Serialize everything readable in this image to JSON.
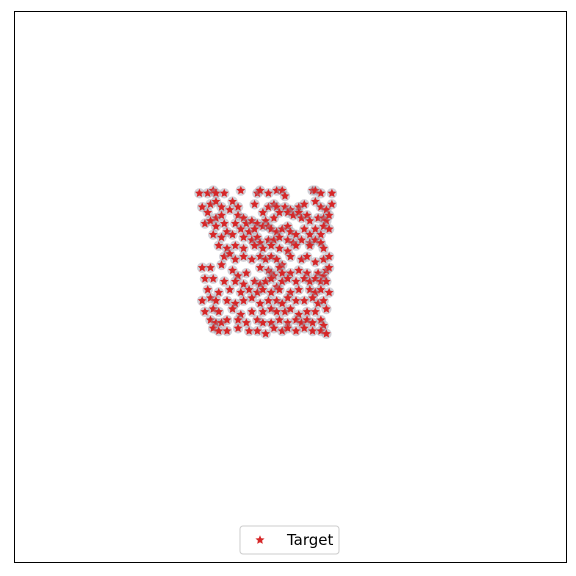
{
  "chart_data": {
    "type": "scatter",
    "title": "",
    "xlabel": "",
    "ylabel": "",
    "grid": false,
    "xlim": [
      -1,
      1
    ],
    "ylim": [
      -1,
      1
    ],
    "ticks_visible": false,
    "legend": {
      "position": "lower-center"
    },
    "series": [
      {
        "name": "Target",
        "marker": "star",
        "color": "#d62728",
        "halo_color": "#9a9aa8",
        "points": [
          [
            -0.33,
            0.34
          ],
          [
            -0.3,
            0.34
          ],
          [
            -0.28,
            0.35
          ],
          [
            -0.27,
            0.34
          ],
          [
            -0.24,
            0.34
          ],
          [
            -0.18,
            0.35
          ],
          [
            -0.12,
            0.34
          ],
          [
            -0.11,
            0.35
          ],
          [
            -0.08,
            0.34
          ],
          [
            -0.05,
            0.35
          ],
          [
            -0.03,
            0.35
          ],
          [
            -0.02,
            0.33
          ],
          [
            0.08,
            0.35
          ],
          [
            0.09,
            0.35
          ],
          [
            0.11,
            0.34
          ],
          [
            0.15,
            0.34
          ],
          [
            -0.32,
            0.29
          ],
          [
            -0.29,
            0.3
          ],
          [
            -0.27,
            0.31
          ],
          [
            -0.25,
            0.29
          ],
          [
            -0.21,
            0.31
          ],
          [
            -0.19,
            0.29
          ],
          [
            -0.13,
            0.3
          ],
          [
            -0.1,
            0.27
          ],
          [
            -0.08,
            0.29
          ],
          [
            -0.06,
            0.3
          ],
          [
            -0.05,
            0.29
          ],
          [
            -0.02,
            0.29
          ],
          [
            0.0,
            0.28
          ],
          [
            0.03,
            0.29
          ],
          [
            0.05,
            0.3
          ],
          [
            0.09,
            0.31
          ],
          [
            0.11,
            0.29
          ],
          [
            0.13,
            0.28
          ],
          [
            0.15,
            0.3
          ],
          [
            -0.3,
            0.27
          ],
          [
            -0.27,
            0.25
          ],
          [
            -0.25,
            0.26
          ],
          [
            -0.22,
            0.28
          ],
          [
            -0.19,
            0.26
          ],
          [
            -0.17,
            0.25
          ],
          [
            -0.16,
            0.23
          ],
          [
            -0.14,
            0.24
          ],
          [
            -0.12,
            0.23
          ],
          [
            -0.09,
            0.24
          ],
          [
            -0.06,
            0.25
          ],
          [
            -0.04,
            0.27
          ],
          [
            -0.01,
            0.27
          ],
          [
            0.01,
            0.26
          ],
          [
            0.03,
            0.27
          ],
          [
            0.04,
            0.25
          ],
          [
            0.06,
            0.26
          ],
          [
            0.07,
            0.24
          ],
          [
            0.1,
            0.25
          ],
          [
            0.12,
            0.25
          ],
          [
            0.13,
            0.24
          ],
          [
            0.14,
            0.26
          ],
          [
            -0.31,
            0.23
          ],
          [
            -0.29,
            0.24
          ],
          [
            -0.27,
            0.22
          ],
          [
            -0.24,
            0.23
          ],
          [
            -0.2,
            0.23
          ],
          [
            -0.18,
            0.21
          ],
          [
            -0.15,
            0.2
          ],
          [
            -0.13,
            0.21
          ],
          [
            -0.1,
            0.22
          ],
          [
            -0.08,
            0.22
          ],
          [
            -0.07,
            0.21
          ],
          [
            -0.05,
            0.2
          ],
          [
            -0.03,
            0.21
          ],
          [
            -0.01,
            0.22
          ],
          [
            0.0,
            0.2
          ],
          [
            0.02,
            0.19
          ],
          [
            0.05,
            0.21
          ],
          [
            0.07,
            0.19
          ],
          [
            0.09,
            0.21
          ],
          [
            0.11,
            0.19
          ],
          [
            0.12,
            0.22
          ],
          [
            0.14,
            0.21
          ],
          [
            -0.28,
            0.19
          ],
          [
            -0.25,
            0.18
          ],
          [
            -0.23,
            0.2
          ],
          [
            -0.21,
            0.19
          ],
          [
            -0.17,
            0.18
          ],
          [
            -0.14,
            0.17
          ],
          [
            -0.12,
            0.18
          ],
          [
            -0.11,
            0.16
          ],
          [
            -0.08,
            0.17
          ],
          [
            -0.06,
            0.17
          ],
          [
            -0.04,
            0.18
          ],
          [
            -0.01,
            0.17
          ],
          [
            0.01,
            0.16
          ],
          [
            0.04,
            0.17
          ],
          [
            0.07,
            0.16
          ],
          [
            0.09,
            0.17
          ],
          [
            0.11,
            0.16
          ],
          [
            -0.26,
            0.15
          ],
          [
            -0.23,
            0.14
          ],
          [
            -0.2,
            0.15
          ],
          [
            -0.17,
            0.14
          ],
          [
            -0.13,
            0.15
          ],
          [
            -0.1,
            0.14
          ],
          [
            -0.07,
            0.15
          ],
          [
            -0.04,
            0.14
          ],
          [
            -0.01,
            0.13
          ],
          [
            0.02,
            0.15
          ],
          [
            0.07,
            0.15
          ],
          [
            0.12,
            0.14
          ],
          [
            -0.24,
            0.11
          ],
          [
            -0.22,
            0.12
          ],
          [
            -0.2,
            0.1
          ],
          [
            -0.17,
            0.11
          ],
          [
            -0.14,
            0.1
          ],
          [
            -0.11,
            0.11
          ],
          [
            -0.09,
            0.1
          ],
          [
            -0.07,
            0.11
          ],
          [
            -0.05,
            0.1
          ],
          [
            -0.03,
            0.08
          ],
          [
            0.0,
            0.11
          ],
          [
            0.04,
            0.1
          ],
          [
            0.06,
            0.11
          ],
          [
            0.09,
            0.09
          ],
          [
            0.12,
            0.1
          ],
          [
            0.14,
            0.11
          ],
          [
            -0.32,
            0.07
          ],
          [
            -0.29,
            0.07
          ],
          [
            -0.25,
            0.08
          ],
          [
            -0.21,
            0.06
          ],
          [
            -0.19,
            0.04
          ],
          [
            -0.16,
            0.05
          ],
          [
            -0.11,
            0.07
          ],
          [
            -0.08,
            0.06
          ],
          [
            -0.07,
            0.05
          ],
          [
            -0.06,
            0.04
          ],
          [
            -0.04,
            0.07
          ],
          [
            -0.03,
            0.05
          ],
          [
            0.0,
            0.05
          ],
          [
            0.03,
            0.06
          ],
          [
            0.06,
            0.05
          ],
          [
            0.1,
            0.05
          ],
          [
            0.12,
            0.04
          ],
          [
            0.13,
            0.06
          ],
          [
            0.14,
            0.07
          ],
          [
            -0.31,
            0.03
          ],
          [
            -0.28,
            0.03
          ],
          [
            -0.24,
            0.02
          ],
          [
            -0.2,
            0.02
          ],
          [
            -0.17,
            0.01
          ],
          [
            -0.13,
            0.02
          ],
          [
            -0.11,
            0.01
          ],
          [
            -0.09,
            0.02
          ],
          [
            -0.07,
            0.03
          ],
          [
            -0.05,
            0.0
          ],
          [
            -0.03,
            0.02
          ],
          [
            -0.01,
            0.03
          ],
          [
            0.02,
            0.02
          ],
          [
            0.05,
            0.03
          ],
          [
            0.07,
            0.02
          ],
          [
            0.09,
            0.03
          ],
          [
            0.11,
            0.02
          ],
          [
            0.13,
            0.02
          ],
          [
            -0.3,
            -0.01
          ],
          [
            -0.26,
            -0.02
          ],
          [
            -0.22,
            -0.01
          ],
          [
            -0.18,
            -0.02
          ],
          [
            -0.15,
            -0.01
          ],
          [
            -0.12,
            -0.02
          ],
          [
            -0.1,
            -0.01
          ],
          [
            -0.07,
            -0.02
          ],
          [
            -0.04,
            -0.01
          ],
          [
            0.0,
            -0.02
          ],
          [
            0.03,
            -0.01
          ],
          [
            0.07,
            -0.01
          ],
          [
            0.09,
            -0.02
          ],
          [
            0.11,
            -0.01
          ],
          [
            0.14,
            -0.02
          ],
          [
            -0.32,
            -0.05
          ],
          [
            -0.29,
            -0.04
          ],
          [
            -0.27,
            -0.05
          ],
          [
            -0.23,
            -0.05
          ],
          [
            -0.2,
            -0.06
          ],
          [
            -0.17,
            -0.05
          ],
          [
            -0.14,
            -0.04
          ],
          [
            -0.11,
            -0.06
          ],
          [
            -0.08,
            -0.05
          ],
          [
            -0.05,
            -0.05
          ],
          [
            -0.03,
            -0.06
          ],
          [
            -0.01,
            -0.04
          ],
          [
            0.02,
            -0.05
          ],
          [
            0.05,
            -0.05
          ],
          [
            0.08,
            -0.04
          ],
          [
            0.1,
            -0.06
          ],
          [
            0.12,
            -0.05
          ],
          [
            -0.31,
            -0.09
          ],
          [
            -0.28,
            -0.08
          ],
          [
            -0.26,
            -0.09
          ],
          [
            -0.21,
            -0.08
          ],
          [
            -0.18,
            -0.1
          ],
          [
            -0.14,
            -0.09
          ],
          [
            -0.1,
            -0.09
          ],
          [
            -0.07,
            -0.08
          ],
          [
            -0.05,
            -0.09
          ],
          [
            -0.02,
            -0.09
          ],
          [
            0.0,
            -0.08
          ],
          [
            0.03,
            -0.1
          ],
          [
            0.06,
            -0.09
          ],
          [
            0.09,
            -0.09
          ],
          [
            0.13,
            -0.08
          ],
          [
            -0.29,
            -0.12
          ],
          [
            -0.27,
            -0.13
          ],
          [
            -0.25,
            -0.13
          ],
          [
            -0.23,
            -0.12
          ],
          [
            -0.19,
            -0.12
          ],
          [
            -0.16,
            -0.13
          ],
          [
            -0.12,
            -0.12
          ],
          [
            -0.1,
            -0.13
          ],
          [
            -0.07,
            -0.13
          ],
          [
            -0.04,
            -0.12
          ],
          [
            -0.01,
            -0.13
          ],
          [
            0.02,
            -0.12
          ],
          [
            0.04,
            -0.13
          ],
          [
            0.06,
            -0.12
          ],
          [
            0.08,
            -0.13
          ],
          [
            0.11,
            -0.12
          ],
          [
            0.12,
            -0.14
          ],
          [
            -0.28,
            -0.15
          ],
          [
            -0.26,
            -0.16
          ],
          [
            -0.23,
            -0.16
          ],
          [
            -0.19,
            -0.15
          ],
          [
            -0.15,
            -0.16
          ],
          [
            -0.12,
            -0.16
          ],
          [
            -0.09,
            -0.17
          ],
          [
            -0.06,
            -0.15
          ],
          [
            -0.03,
            -0.16
          ],
          [
            -0.01,
            -0.15
          ],
          [
            0.02,
            -0.16
          ],
          [
            0.05,
            -0.15
          ],
          [
            0.08,
            -0.16
          ],
          [
            0.11,
            -0.16
          ],
          [
            0.13,
            -0.17
          ]
        ]
      }
    ]
  },
  "legend": {
    "label": "Target"
  }
}
